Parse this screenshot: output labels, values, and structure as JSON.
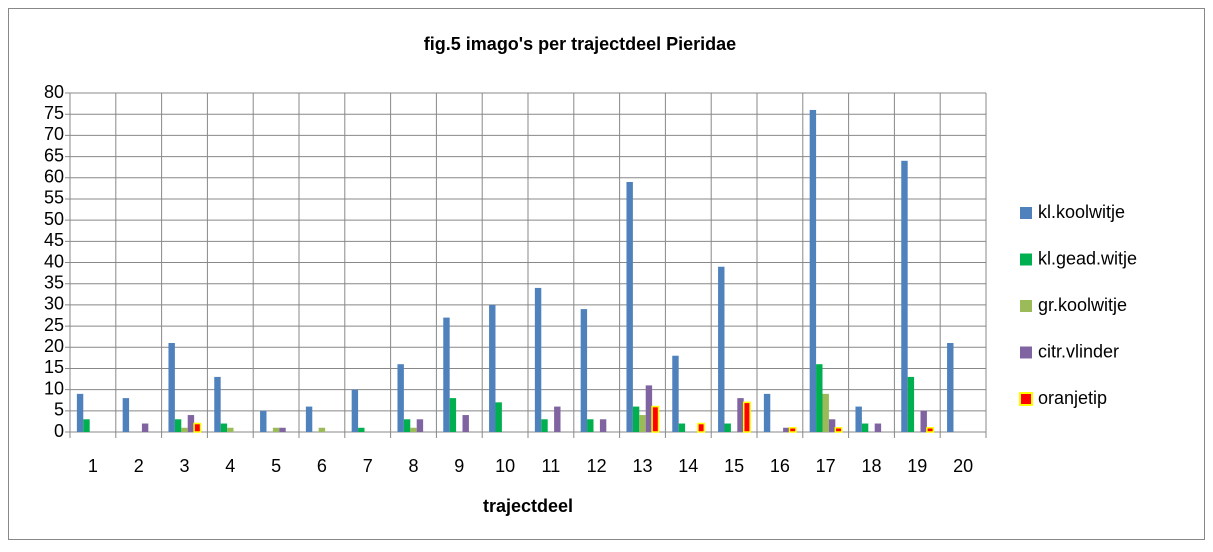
{
  "chart_data": {
    "type": "bar",
    "title": "fig.5 imago's per trajectdeel Pieridae",
    "x_label": "trajectdeel",
    "categories": [
      "1",
      "2",
      "3",
      "4",
      "5",
      "6",
      "7",
      "8",
      "9",
      "10",
      "11",
      "12",
      "13",
      "14",
      "15",
      "16",
      "17",
      "18",
      "19",
      "20"
    ],
    "series": [
      {
        "name": "kl.koolwitje",
        "color": "#4f81bd",
        "values": [
          9,
          8,
          21,
          13,
          5,
          6,
          10,
          16,
          27,
          30,
          34,
          29,
          59,
          18,
          39,
          9,
          76,
          6,
          64,
          21
        ]
      },
      {
        "name": "kl.gead.witje",
        "color": "#00b050",
        "values": [
          3,
          0,
          3,
          2,
          0,
          0,
          1,
          3,
          8,
          7,
          3,
          3,
          6,
          2,
          2,
          0,
          16,
          2,
          13,
          0
        ]
      },
      {
        "name": "gr.koolwitje",
        "color": "#9bbb59",
        "values": [
          0,
          0,
          1,
          1,
          1,
          1,
          0,
          1,
          0,
          0,
          0,
          0,
          4,
          0,
          0,
          0,
          9,
          0,
          0,
          0
        ]
      },
      {
        "name": "citr.vlinder",
        "color": "#8064a2",
        "values": [
          0,
          2,
          4,
          0,
          1,
          0,
          0,
          3,
          4,
          0,
          6,
          3,
          11,
          0,
          8,
          1,
          3,
          2,
          5,
          0
        ]
      },
      {
        "name": "oranjetip",
        "color": "#ff0000",
        "edge_color": "#ffff00",
        "values": [
          0,
          0,
          2,
          0,
          0,
          0,
          0,
          0,
          0,
          0,
          0,
          0,
          6,
          2,
          7,
          1,
          1,
          0,
          1,
          0
        ]
      }
    ],
    "ylim": [
      0,
      80
    ],
    "yticks": [
      0,
      5,
      10,
      15,
      20,
      25,
      30,
      35,
      40,
      45,
      50,
      55,
      60,
      65,
      70,
      75,
      80
    ],
    "grid": true,
    "legend": "right"
  }
}
